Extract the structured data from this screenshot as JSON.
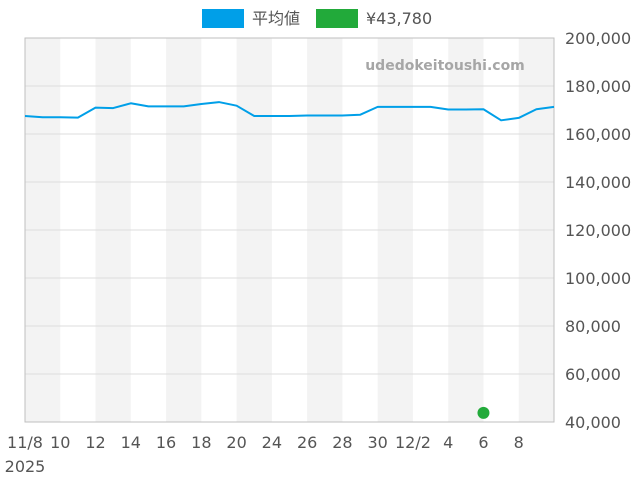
{
  "chart_data": {
    "type": "line",
    "watermark": "udedokeitoushi.com",
    "legend": {
      "placement": "top-center",
      "items": [
        {
          "label": "平均値",
          "color": "#009fe8"
        },
        {
          "label": "¥43,780",
          "color": "#22aa3a"
        }
      ]
    },
    "x_ticks": [
      {
        "day": 0,
        "label": "11/8",
        "sublabel": "2025"
      },
      {
        "day": 2,
        "label": "10"
      },
      {
        "day": 4,
        "label": "12"
      },
      {
        "day": 6,
        "label": "14"
      },
      {
        "day": 8,
        "label": "16"
      },
      {
        "day": 10,
        "label": "18"
      },
      {
        "day": 12,
        "label": "20"
      },
      {
        "day": 14,
        "label": "24"
      },
      {
        "day": 16,
        "label": "26"
      },
      {
        "day": 18,
        "label": "28"
      },
      {
        "day": 20,
        "label": "30"
      },
      {
        "day": 22,
        "label": "12/2"
      },
      {
        "day": 24,
        "label": "4"
      },
      {
        "day": 26,
        "label": "6"
      },
      {
        "day": 28,
        "label": "8"
      }
    ],
    "y_axis": {
      "position": "right",
      "min": 40000,
      "max": 200000,
      "ticks": [
        "40,000",
        "60,000",
        "80,000",
        "100,000",
        "120,000",
        "140,000",
        "160,000",
        "180,000",
        "200,000"
      ],
      "tick_values": [
        40000,
        60000,
        80000,
        100000,
        120000,
        140000,
        160000,
        180000,
        200000
      ]
    },
    "grid": true,
    "series": [
      {
        "name": "平均値",
        "color": "#009fe8",
        "kind": "line",
        "points": [
          [
            0,
            167500
          ],
          [
            1,
            167000
          ],
          [
            2,
            167000
          ],
          [
            3,
            166800
          ],
          [
            4,
            171000
          ],
          [
            5,
            170800
          ],
          [
            6,
            172800
          ],
          [
            7,
            171500
          ],
          [
            8,
            171500
          ],
          [
            9,
            171500
          ],
          [
            10,
            172500
          ],
          [
            11,
            173300
          ],
          [
            12,
            171800
          ],
          [
            13,
            167500
          ],
          [
            14,
            167500
          ],
          [
            15,
            167500
          ],
          [
            16,
            167700
          ],
          [
            17,
            167700
          ],
          [
            18,
            167700
          ],
          [
            19,
            168000
          ],
          [
            20,
            171300
          ],
          [
            21,
            171300
          ],
          [
            22,
            171300
          ],
          [
            23,
            171300
          ],
          [
            24,
            170200
          ],
          [
            25,
            170200
          ],
          [
            26,
            170300
          ],
          [
            27,
            165700
          ],
          [
            28,
            166700
          ],
          [
            29,
            170300
          ],
          [
            30,
            171300
          ]
        ]
      },
      {
        "name": "¥43,780",
        "color": "#22aa3a",
        "kind": "point",
        "points": [
          [
            26,
            43780
          ]
        ]
      }
    ]
  }
}
